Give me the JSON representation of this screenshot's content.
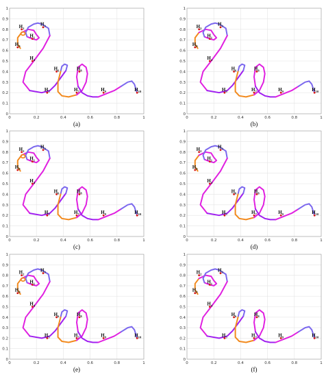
{
  "chart_data": {
    "type": "line",
    "xlim": [
      0,
      1
    ],
    "ylim": [
      0,
      1
    ],
    "xticks": [
      "0",
      "0.2",
      "0.4",
      "0.6",
      "0.8",
      "1"
    ],
    "yticks": [
      "0",
      "0.1",
      "0.2",
      "0.3",
      "0.4",
      "0.5",
      "0.6",
      "0.7",
      "0.8",
      "0.9",
      "1"
    ],
    "grid": true,
    "colors": {
      "violet": "#7b68ee",
      "magenta": "#e020e0",
      "purple": "#a020f0",
      "orange": "#f28a1e",
      "red": "#d41515"
    },
    "curve": {
      "x": [
        0.08,
        0.06,
        0.06,
        0.09,
        0.14,
        0.18,
        0.2,
        0.22,
        0.2,
        0.17,
        0.13,
        0.12,
        0.14,
        0.18,
        0.21,
        0.24,
        0.29,
        0.3,
        0.25,
        0.18,
        0.12,
        0.1,
        0.15,
        0.24,
        0.3,
        0.34,
        0.38,
        0.42,
        0.43,
        0.41,
        0.39,
        0.38,
        0.36,
        0.36,
        0.39,
        0.44,
        0.5,
        0.54,
        0.57,
        0.58,
        0.57,
        0.54,
        0.51,
        0.5,
        0.51,
        0.54,
        0.58,
        0.62,
        0.66,
        0.7,
        0.74,
        0.78,
        0.83,
        0.88,
        0.91,
        0.93,
        0.95
      ],
      "y": [
        0.62,
        0.66,
        0.72,
        0.77,
        0.8,
        0.79,
        0.75,
        0.72,
        0.7,
        0.71,
        0.73,
        0.77,
        0.82,
        0.85,
        0.86,
        0.85,
        0.81,
        0.74,
        0.62,
        0.5,
        0.4,
        0.3,
        0.22,
        0.2,
        0.22,
        0.27,
        0.34,
        0.41,
        0.46,
        0.47,
        0.45,
        0.4,
        0.3,
        0.21,
        0.17,
        0.16,
        0.18,
        0.22,
        0.3,
        0.38,
        0.44,
        0.47,
        0.44,
        0.35,
        0.26,
        0.2,
        0.17,
        0.16,
        0.16,
        0.18,
        0.2,
        0.22,
        0.26,
        0.3,
        0.31,
        0.28,
        0.2
      ]
    },
    "points": [
      {
        "id": "H",
        "sub": "0",
        "x": 0.06,
        "y": 0.63
      },
      {
        "id": "H",
        "sub": "1",
        "x": 0.17,
        "y": 0.71
      },
      {
        "id": "H",
        "sub": "2",
        "x": 0.09,
        "y": 0.8
      },
      {
        "id": "H",
        "sub": "3",
        "x": 0.25,
        "y": 0.82
      },
      {
        "id": "H",
        "sub": "4",
        "x": 0.17,
        "y": 0.5
      },
      {
        "id": "H",
        "sub": "5",
        "x": 0.28,
        "y": 0.2
      },
      {
        "id": "H",
        "sub": "6",
        "x": 0.35,
        "y": 0.4
      },
      {
        "id": "H",
        "sub": "7",
        "x": 0.5,
        "y": 0.2
      },
      {
        "id": "H",
        "sub": "8",
        "x": 0.52,
        "y": 0.4
      },
      {
        "id": "H",
        "sub": "9",
        "x": 0.7,
        "y": 0.2
      },
      {
        "id": "H",
        "sub": "10",
        "x": 0.95,
        "y": 0.2
      }
    ],
    "panels": [
      {
        "label": "(a)",
        "loop": true
      },
      {
        "label": "(b)",
        "loop": false
      },
      {
        "label": "(c)",
        "loop": true
      },
      {
        "label": "(d)",
        "loop": false
      },
      {
        "label": "(e)",
        "loop": true
      },
      {
        "label": "(f)",
        "loop": false
      }
    ]
  }
}
